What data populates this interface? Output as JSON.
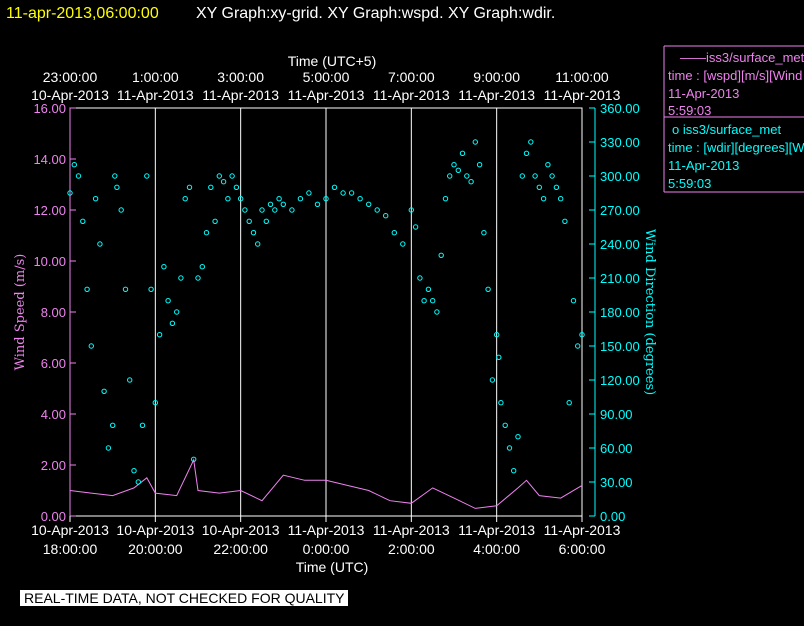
{
  "header": {
    "timestamp": "11-apr-2013,06:00:00",
    "title": "XY Graph:xy-grid.  XY Graph:wspd.  XY Graph:wdir.",
    "timestamp_color": "#ffff00"
  },
  "legend": {
    "entries": [
      {
        "line": "——iss3/surface_met",
        "field": "time : [wspd][m/s][Wind",
        "date": "11-Apr-2013",
        "time": "5:59:03",
        "color": "#ee82ee",
        "marker": "line"
      },
      {
        "line": "o  iss3/surface_met",
        "field": "time : [wdir][degrees][W",
        "date": "11-Apr-2013",
        "time": "5:59:03",
        "color": "#00ffff",
        "marker": "circle"
      }
    ]
  },
  "footer": {
    "warning": "REAL-TIME DATA, NOT CHECKED FOR QUALITY"
  },
  "chart_data": {
    "type": "line+scatter",
    "top_axis": {
      "label": "Time (UTC+5)",
      "ticks": [
        {
          "time": "23:00:00",
          "date": "10-Apr-2013"
        },
        {
          "time": "1:00:00",
          "date": "11-Apr-2013"
        },
        {
          "time": "3:00:00",
          "date": "11-Apr-2013"
        },
        {
          "time": "5:00:00",
          "date": "11-Apr-2013"
        },
        {
          "time": "7:00:00",
          "date": "11-Apr-2013"
        },
        {
          "time": "9:00:00",
          "date": "11-Apr-2013"
        },
        {
          "time": "11:00:00",
          "date": "11-Apr-2013"
        }
      ]
    },
    "bottom_axis": {
      "label": "Time (UTC)",
      "ticks": [
        {
          "date": "10-Apr-2013",
          "time": "18:00:00"
        },
        {
          "date": "10-Apr-2013",
          "time": "20:00:00"
        },
        {
          "date": "10-Apr-2013",
          "time": "22:00:00"
        },
        {
          "date": "11-Apr-2013",
          "time": "0:00:00"
        },
        {
          "date": "11-Apr-2013",
          "time": "2:00:00"
        },
        {
          "date": "11-Apr-2013",
          "time": "4:00:00"
        },
        {
          "date": "11-Apr-2013",
          "time": "6:00:00"
        }
      ]
    },
    "x_range_hours_utc": [
      18,
      30
    ],
    "vertical_grid_hours_utc": [
      20,
      22,
      24,
      26,
      28,
      30
    ],
    "left_axis": {
      "label": "Wind Speed (m/s)",
      "ylim": [
        0,
        16
      ],
      "tick_labels": [
        "0.00",
        "2.00",
        "4.00",
        "6.00",
        "8.00",
        "10.00",
        "12.00",
        "14.00",
        "16.00"
      ],
      "color": "#ee82ee"
    },
    "right_axis": {
      "label": "Wind Direction (degrees)",
      "ylim": [
        0,
        360
      ],
      "tick_labels": [
        "0.00",
        "30.00",
        "60.00",
        "90.00",
        "120.00",
        "150.00",
        "180.00",
        "210.00",
        "240.00",
        "270.00",
        "300.00",
        "330.00",
        "360.00"
      ],
      "color": "#00ffff"
    },
    "series": [
      {
        "key": "wspd",
        "style": "line",
        "color": "#ee82ee",
        "x_utc_hours": [
          18.0,
          18.5,
          19.0,
          19.5,
          19.8,
          20.0,
          20.5,
          20.9,
          21.0,
          21.5,
          22.0,
          22.5,
          23.0,
          23.5,
          24.0,
          24.5,
          25.0,
          25.5,
          26.0,
          26.5,
          27.0,
          27.5,
          28.0,
          28.5,
          28.7,
          29.0,
          29.5,
          30.0
        ],
        "y": [
          1.0,
          0.9,
          0.8,
          1.1,
          1.5,
          0.9,
          0.8,
          2.2,
          1.0,
          0.9,
          1.0,
          0.6,
          1.6,
          1.4,
          1.4,
          1.2,
          1.0,
          0.6,
          0.5,
          1.1,
          0.7,
          0.3,
          0.4,
          1.1,
          1.4,
          0.8,
          0.7,
          1.2
        ]
      },
      {
        "key": "wdir",
        "style": "scatter",
        "color": "#00ffff",
        "x_utc_hours": [
          18.0,
          18.1,
          18.2,
          18.3,
          18.4,
          18.5,
          18.6,
          18.7,
          18.8,
          18.9,
          19.0,
          19.05,
          19.1,
          19.2,
          19.3,
          19.4,
          19.5,
          19.6,
          19.7,
          19.8,
          19.9,
          20.0,
          20.1,
          20.2,
          20.3,
          20.4,
          20.5,
          20.6,
          20.7,
          20.8,
          20.9,
          21.0,
          21.1,
          21.2,
          21.3,
          21.4,
          21.5,
          21.6,
          21.7,
          21.8,
          21.9,
          22.0,
          22.1,
          22.2,
          22.3,
          22.4,
          22.5,
          22.6,
          22.7,
          22.8,
          22.9,
          23.0,
          23.2,
          23.4,
          23.6,
          23.8,
          24.0,
          24.2,
          24.4,
          24.6,
          24.8,
          25.0,
          25.2,
          25.4,
          25.6,
          25.8,
          26.0,
          26.1,
          26.2,
          26.3,
          26.4,
          26.5,
          26.6,
          26.7,
          26.8,
          26.9,
          27.0,
          27.1,
          27.2,
          27.3,
          27.4,
          27.5,
          27.6,
          27.7,
          27.8,
          27.9,
          28.0,
          28.05,
          28.1,
          28.2,
          28.3,
          28.4,
          28.5,
          28.6,
          28.7,
          28.8,
          28.9,
          29.0,
          29.1,
          29.2,
          29.3,
          29.4,
          29.5,
          29.6,
          29.7,
          29.8,
          29.9,
          30.0
        ],
        "y": [
          285,
          310,
          300,
          260,
          200,
          150,
          280,
          240,
          110,
          60,
          80,
          300,
          290,
          270,
          200,
          120,
          40,
          30,
          80,
          300,
          200,
          100,
          160,
          220,
          190,
          170,
          180,
          210,
          280,
          290,
          50,
          210,
          220,
          250,
          290,
          260,
          300,
          295,
          280,
          300,
          290,
          280,
          270,
          260,
          250,
          240,
          270,
          260,
          275,
          270,
          280,
          275,
          270,
          280,
          285,
          275,
          280,
          290,
          285,
          285,
          280,
          275,
          270,
          265,
          250,
          240,
          270,
          255,
          210,
          190,
          200,
          190,
          180,
          230,
          280,
          300,
          310,
          305,
          320,
          300,
          295,
          330,
          310,
          250,
          200,
          120,
          160,
          140,
          100,
          80,
          60,
          40,
          70,
          300,
          320,
          330,
          300,
          290,
          280,
          310,
          300,
          290,
          280,
          260,
          100,
          190,
          150,
          160
        ]
      }
    ]
  }
}
